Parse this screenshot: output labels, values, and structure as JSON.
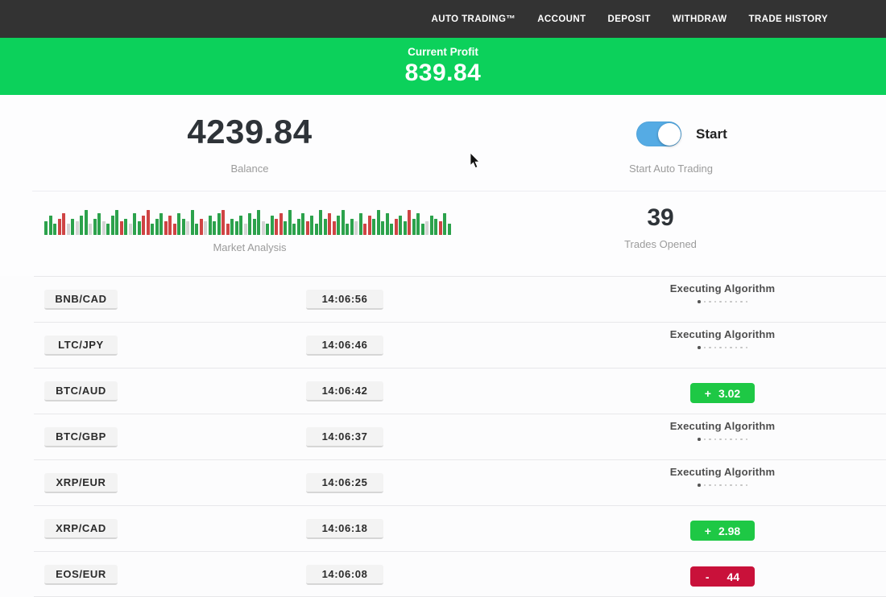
{
  "nav": {
    "items": [
      {
        "id": "auto-trading",
        "label": "AUTO TRADING™"
      },
      {
        "id": "account",
        "label": "ACCOUNT"
      },
      {
        "id": "deposit",
        "label": "DEPOSIT"
      },
      {
        "id": "withdraw",
        "label": "WITHDRAW"
      },
      {
        "id": "trade-history",
        "label": "TRADE HISTORY"
      }
    ]
  },
  "profit_banner": {
    "label": "Current Profit",
    "value": "839.84"
  },
  "stats": {
    "balance": {
      "value": "4239.84",
      "label": "Balance"
    },
    "auto_trading": {
      "toggle_state": "on",
      "toggle_label": "Start",
      "caption": "Start Auto Trading"
    },
    "market_analysis": {
      "label": "Market Analysis"
    },
    "trades_opened": {
      "value": "39",
      "label": "Trades Opened"
    }
  },
  "chart_data": {
    "type": "bar",
    "title": "Market Analysis",
    "note": "decorative strip of market tick bars; letter=color (g green, r red, l light-gray), digit=relative height 1-9",
    "bars": [
      "g5",
      "g7",
      "g4",
      "r6",
      "r8",
      "l4",
      "g6",
      "l5",
      "g7",
      "g9",
      "l4",
      "g6",
      "g8",
      "l5",
      "g4",
      "g7",
      "g9",
      "r5",
      "g6",
      "l4",
      "g8",
      "g5",
      "r7",
      "r9",
      "g4",
      "g6",
      "g8",
      "r5",
      "r7",
      "r4",
      "g8",
      "g6",
      "l5",
      "g9",
      "g4",
      "r6",
      "l5",
      "g7",
      "g5",
      "g8",
      "r9",
      "r4",
      "g6",
      "g5",
      "g7",
      "l4",
      "g8",
      "g6",
      "g9",
      "l5",
      "g4",
      "g7",
      "r6",
      "r8",
      "g5",
      "g9",
      "g4",
      "g6",
      "g8",
      "r5",
      "g7",
      "g4",
      "g9",
      "g6",
      "r8",
      "r5",
      "g7",
      "g9",
      "g4",
      "g6",
      "l5",
      "g8",
      "r4",
      "r7",
      "g6",
      "g9",
      "g5",
      "g8",
      "g4",
      "r6",
      "g7",
      "g5",
      "r9",
      "g6",
      "g8",
      "g4",
      "l5",
      "g7",
      "g6",
      "r5",
      "g8",
      "g4"
    ],
    "colors": {
      "g": "#2ca24c",
      "r": "#cf4444",
      "l": "#d4d4d4"
    }
  },
  "executing_indicator": {
    "dots_total": 10,
    "dots_active": 1
  },
  "trades": [
    {
      "pair": "BNB/CAD",
      "time": "14:06:56",
      "status": {
        "type": "executing",
        "label": "Executing Algorithm"
      }
    },
    {
      "pair": "LTC/JPY",
      "time": "14:06:46",
      "status": {
        "type": "executing",
        "label": "Executing Algorithm"
      }
    },
    {
      "pair": "BTC/AUD",
      "time": "14:06:42",
      "status": {
        "type": "profit",
        "sign": "+",
        "value": "3.02"
      }
    },
    {
      "pair": "BTC/GBP",
      "time": "14:06:37",
      "status": {
        "type": "executing",
        "label": "Executing Algorithm"
      }
    },
    {
      "pair": "XRP/EUR",
      "time": "14:06:25",
      "status": {
        "type": "executing",
        "label": "Executing Algorithm"
      }
    },
    {
      "pair": "XRP/CAD",
      "time": "14:06:18",
      "status": {
        "type": "profit",
        "sign": "+",
        "value": "2.98"
      }
    },
    {
      "pair": "EOS/EUR",
      "time": "14:06:08",
      "status": {
        "type": "loss",
        "sign": "-",
        "value": "44"
      }
    }
  ],
  "colors": {
    "nav_dark": "#333333",
    "banner_green": "#0cd15b",
    "badge_green": "#1ec845",
    "badge_red": "#c9113a",
    "toggle_blue": "#55abe4"
  }
}
